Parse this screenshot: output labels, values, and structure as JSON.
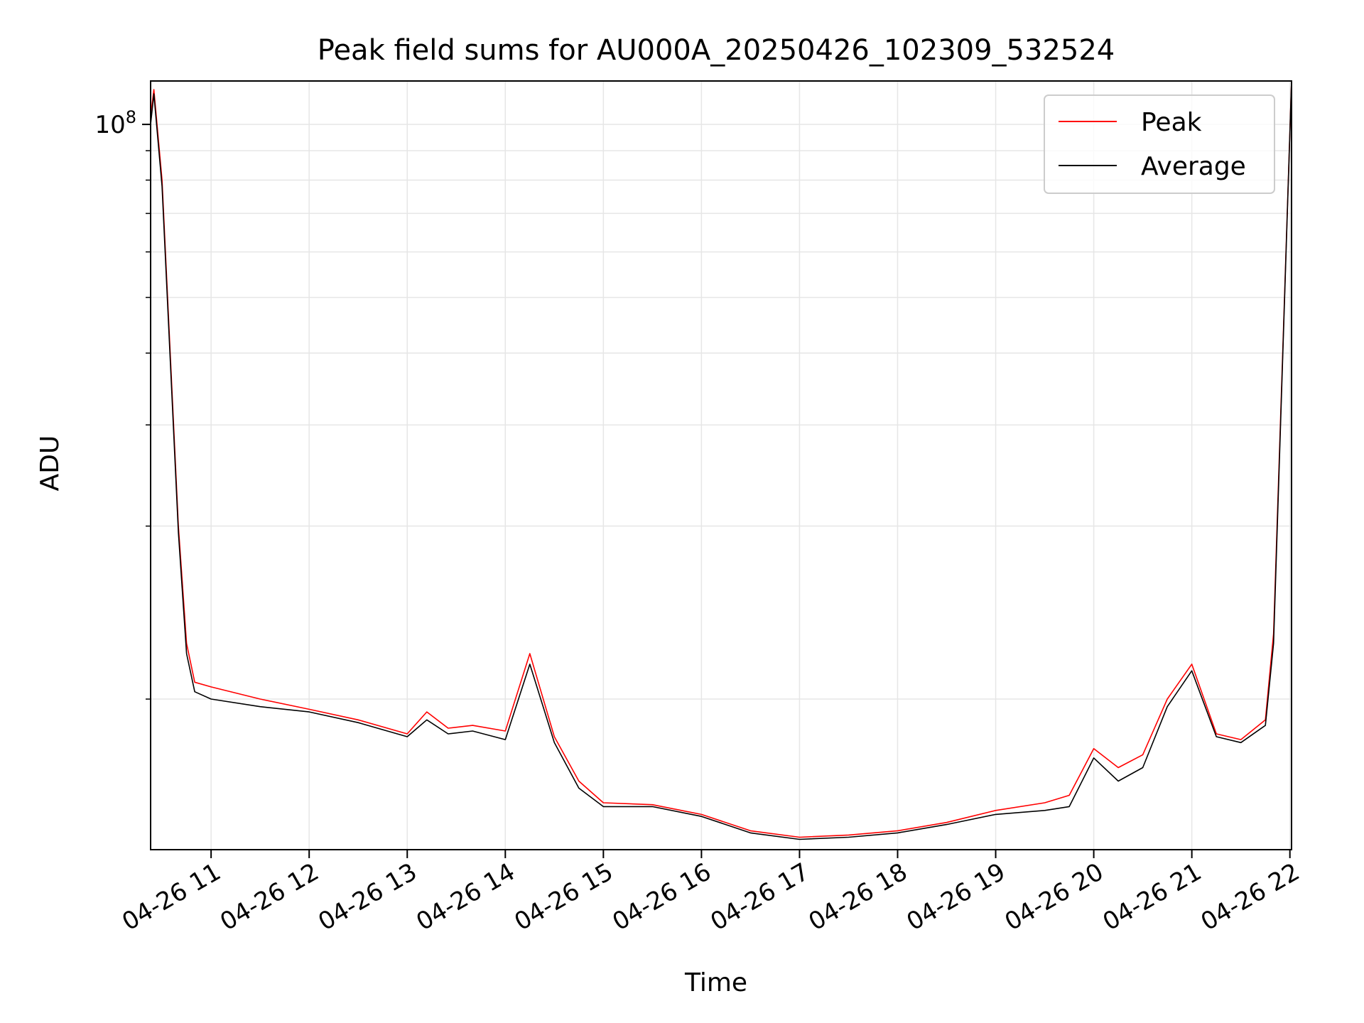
{
  "chart_data": {
    "type": "line",
    "title": "Peak field sums for AU000A_20250426_102309_532524",
    "xlabel": "Time",
    "ylabel": "ADU",
    "y_scale": "log",
    "ylim": [
      5470000,
      119000000
    ],
    "xlim": [
      "2025-04-26 10:23",
      "2025-04-26 22:01"
    ],
    "grid": true,
    "legend_position": "upper right",
    "x_ticks": [
      "04-26 11",
      "04-26 12",
      "04-26 13",
      "04-26 14",
      "04-26 15",
      "04-26 16",
      "04-26 17",
      "04-26 18",
      "04-26 19",
      "04-26 20",
      "04-26 21",
      "04-26 22"
    ],
    "x_tick_times": [
      "2025-04-26 11:00",
      "2025-04-26 12:00",
      "2025-04-26 13:00",
      "2025-04-26 14:00",
      "2025-04-26 15:00",
      "2025-04-26 16:00",
      "2025-04-26 17:00",
      "2025-04-26 18:00",
      "2025-04-26 19:00",
      "2025-04-26 20:00",
      "2025-04-26 21:00",
      "2025-04-26 22:00"
    ],
    "y_major_ticks": [
      {
        "value": 100000000,
        "base": "10",
        "exp": "8"
      }
    ],
    "y_minor_ticks": [
      10000000,
      20000000,
      30000000,
      40000000,
      50000000,
      60000000,
      70000000,
      80000000,
      90000000
    ],
    "series": [
      {
        "name": "Peak",
        "color": "#ff0000",
        "x": [
          "2025-04-26 10:23",
          "2025-04-26 10:25",
          "2025-04-26 10:30",
          "2025-04-26 10:35",
          "2025-04-26 10:40",
          "2025-04-26 10:45",
          "2025-04-26 10:50",
          "2025-04-26 11:00",
          "2025-04-26 11:30",
          "2025-04-26 12:00",
          "2025-04-26 12:30",
          "2025-04-26 13:00",
          "2025-04-26 13:12",
          "2025-04-26 13:25",
          "2025-04-26 13:40",
          "2025-04-26 14:00",
          "2025-04-26 14:15",
          "2025-04-26 14:30",
          "2025-04-26 14:45",
          "2025-04-26 15:00",
          "2025-04-26 15:30",
          "2025-04-26 16:00",
          "2025-04-26 16:30",
          "2025-04-26 17:00",
          "2025-04-26 17:30",
          "2025-04-26 18:00",
          "2025-04-26 18:30",
          "2025-04-26 19:00",
          "2025-04-26 19:30",
          "2025-04-26 19:45",
          "2025-04-26 20:00",
          "2025-04-26 20:15",
          "2025-04-26 20:30",
          "2025-04-26 20:45",
          "2025-04-26 21:00",
          "2025-04-26 21:15",
          "2025-04-26 21:30",
          "2025-04-26 21:45",
          "2025-04-26 21:50",
          "2025-04-26 22:01"
        ],
        "values": [
          103000000,
          115000000,
          80000000,
          40000000,
          20000000,
          12500000,
          10700000,
          10500000,
          10000000,
          9600000,
          9200000,
          8700000,
          9500000,
          8900000,
          9000000,
          8800000,
          12000000,
          8600000,
          7200000,
          6600000,
          6550000,
          6300000,
          5900000,
          5750000,
          5800000,
          5900000,
          6100000,
          6400000,
          6600000,
          6800000,
          8200000,
          7600000,
          8000000,
          10000000,
          11500000,
          8700000,
          8500000,
          9200000,
          13000000,
          119000000
        ]
      },
      {
        "name": "Average",
        "color": "#000000",
        "x": [
          "2025-04-26 10:23",
          "2025-04-26 10:25",
          "2025-04-26 10:30",
          "2025-04-26 10:35",
          "2025-04-26 10:40",
          "2025-04-26 10:45",
          "2025-04-26 10:50",
          "2025-04-26 11:00",
          "2025-04-26 11:30",
          "2025-04-26 12:00",
          "2025-04-26 12:30",
          "2025-04-26 13:00",
          "2025-04-26 13:12",
          "2025-04-26 13:25",
          "2025-04-26 13:40",
          "2025-04-26 14:00",
          "2025-04-26 14:15",
          "2025-04-26 14:30",
          "2025-04-26 14:45",
          "2025-04-26 15:00",
          "2025-04-26 15:30",
          "2025-04-26 16:00",
          "2025-04-26 16:30",
          "2025-04-26 17:00",
          "2025-04-26 17:30",
          "2025-04-26 18:00",
          "2025-04-26 18:30",
          "2025-04-26 19:00",
          "2025-04-26 19:30",
          "2025-04-26 19:45",
          "2025-04-26 20:00",
          "2025-04-26 20:15",
          "2025-04-26 20:30",
          "2025-04-26 20:45",
          "2025-04-26 21:00",
          "2025-04-26 21:15",
          "2025-04-26 21:30",
          "2025-04-26 21:45",
          "2025-04-26 21:50",
          "2025-04-26 22:01"
        ],
        "values": [
          100000000,
          113000000,
          78000000,
          39000000,
          19500000,
          12000000,
          10300000,
          10000000,
          9700000,
          9500000,
          9100000,
          8600000,
          9200000,
          8700000,
          8800000,
          8500000,
          11500000,
          8400000,
          7000000,
          6500000,
          6500000,
          6250000,
          5850000,
          5700000,
          5750000,
          5850000,
          6050000,
          6300000,
          6400000,
          6500000,
          7900000,
          7200000,
          7600000,
          9700000,
          11200000,
          8600000,
          8400000,
          9000000,
          12500000,
          119000000
        ]
      }
    ]
  }
}
